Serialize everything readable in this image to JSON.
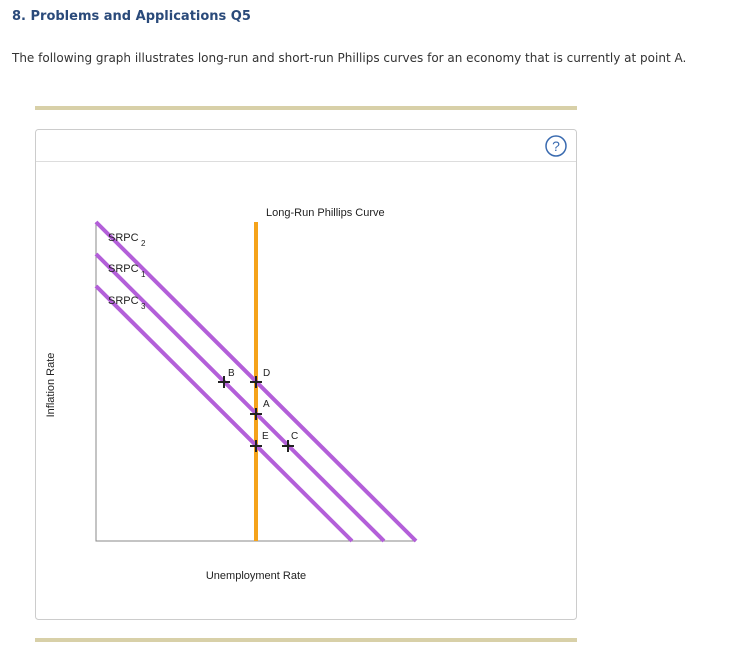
{
  "header": {
    "title": "8. Problems and Applications Q5"
  },
  "intro": "The following graph illustrates long-run and short-run Phillips curves for an economy that is currently at point A.",
  "help": "?",
  "diagram": {
    "lrpc_label": "Long-Run Phillips Curve",
    "x_axis_label": "Unemployment Rate",
    "y_axis_label": "Inflation Rate",
    "curves": [
      {
        "label": "SRPC",
        "subscript": "2"
      },
      {
        "label": "SRPC",
        "subscript": "1"
      },
      {
        "label": "SRPC",
        "subscript": "3"
      }
    ],
    "points": [
      "B",
      "D",
      "A",
      "E",
      "C"
    ]
  }
}
